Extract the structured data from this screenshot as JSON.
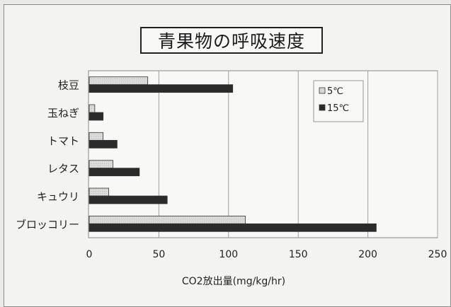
{
  "chart_data": {
    "type": "bar",
    "orientation": "horizontal",
    "title": "青果物の呼吸速度",
    "xlabel": "CO2放出量(mg/kg/hr)",
    "ylabel": "",
    "xlim": [
      0,
      250
    ],
    "x_ticks": [
      0,
      50,
      100,
      150,
      200,
      250
    ],
    "grid": "vertical",
    "legend_position": "right",
    "categories": [
      "枝豆",
      "玉ねぎ",
      "トマト",
      "レタス",
      "キュウリ",
      "ブロッコリー"
    ],
    "series": [
      {
        "name": "5℃",
        "color": "#d2d2d0",
        "values": [
          42,
          4,
          10,
          17,
          14,
          112
        ]
      },
      {
        "name": "15℃",
        "color": "#2b2b2b",
        "values": [
          103,
          10,
          20,
          36,
          56,
          206
        ]
      }
    ]
  }
}
